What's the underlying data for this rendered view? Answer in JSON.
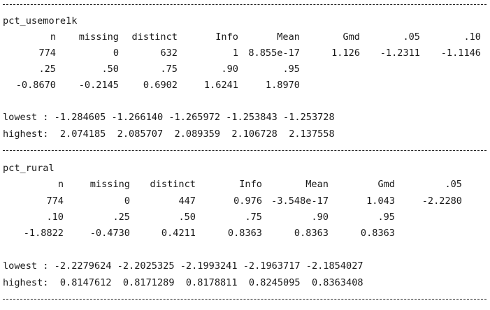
{
  "blocks": [
    {
      "name": "pct_usemore1k",
      "header_row_1": [
        "n",
        "missing",
        "distinct",
        "Info",
        "Mean",
        "Gmd",
        ".05",
        ".10"
      ],
      "value_row_1": [
        "774",
        "0",
        "632",
        "1",
        "8.855e-17",
        "1.126",
        "-1.2311",
        "-1.1146"
      ],
      "header_row_2": [
        ".25",
        ".50",
        ".75",
        ".90",
        ".95"
      ],
      "value_row_2": [
        "-0.8670",
        "-0.2145",
        "0.6902",
        "1.6241",
        "1.8970"
      ],
      "lowest_line": "lowest : -1.284605 -1.266140 -1.265972 -1.253843 -1.253728",
      "highest_line": "highest:  2.074185  2.085707  2.089359  2.106728  2.137558"
    },
    {
      "name": "pct_rural",
      "header_row_1": [
        "n",
        "missing",
        "distinct",
        "Info",
        "Mean",
        "Gmd",
        ".05"
      ],
      "value_row_1": [
        "774",
        "0",
        "447",
        "0.976",
        "-3.548e-17",
        "1.043",
        "-2.2280"
      ],
      "header_row_2": [
        ".10",
        ".25",
        ".50",
        ".75",
        ".90",
        ".95"
      ],
      "value_row_2": [
        "-1.8822",
        "-0.4730",
        "0.4211",
        "0.8363",
        "0.8363",
        "0.8363"
      ],
      "lowest_line": "lowest : -2.2279624 -2.2025325 -2.1993241 -2.1963717 -2.1854027",
      "highest_line": "highest:  0.8147612  0.8171289  0.8178811  0.8245095  0.8363408"
    }
  ]
}
